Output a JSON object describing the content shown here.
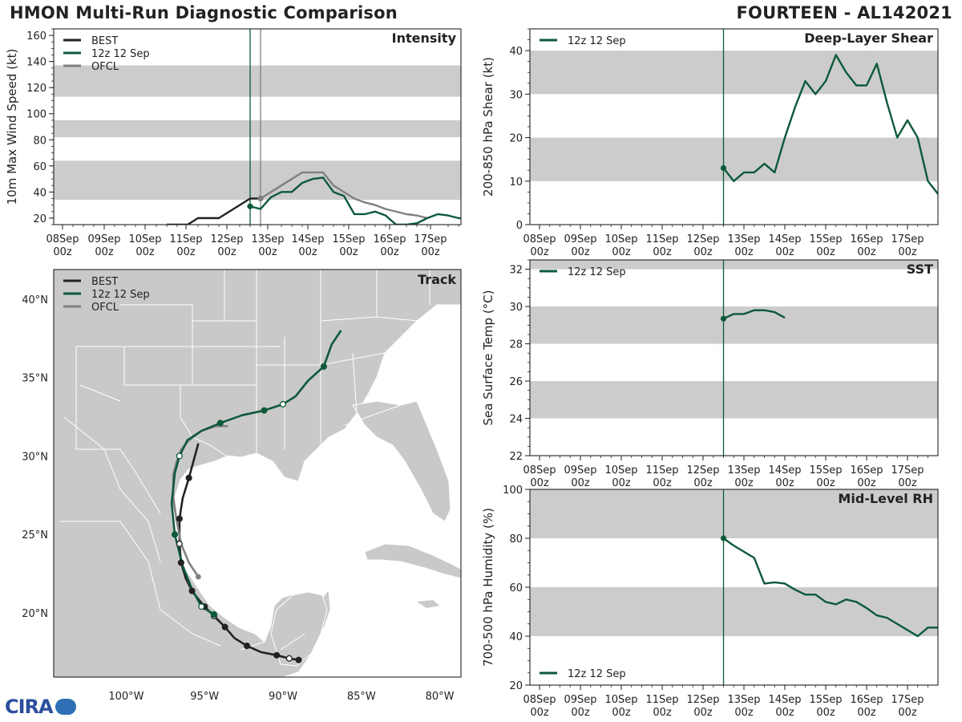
{
  "header": {
    "left_title": "HMON Multi-Run Diagnostic Comparison",
    "right_title": "FOURTEEN - AL142021"
  },
  "logo": {
    "text": "CIRA",
    "icon": "cira-logo-icon"
  },
  "colors": {
    "best": "#222222",
    "run": "#0d5a3a",
    "ofcl": "#808080",
    "band": "#cccccc",
    "land": "#c9c9c9"
  },
  "time_ticks": [
    "08Sep\n00z",
    "09Sep\n00z",
    "10Sep\n00z",
    "11Sep\n00z",
    "12Sep\n00z",
    "13Sep\n00z",
    "14Sep\n00z",
    "15Sep\n00z",
    "16Sep\n00z",
    "17Sep\n00z"
  ],
  "chart_data": [
    {
      "id": "intensity",
      "type": "line",
      "title": "Intensity",
      "ylabel": "10m Max Wind Speed (kt)",
      "xlim": [
        0,
        10.75
      ],
      "ylim": [
        15,
        165
      ],
      "yticks": [
        20,
        40,
        60,
        80,
        100,
        120,
        140,
        160
      ],
      "bands": [
        [
          34,
          64
        ],
        [
          82,
          95
        ],
        [
          113,
          137
        ]
      ],
      "vlines": [
        {
          "x": 4.5,
          "color": "run"
        },
        {
          "x": 4.75,
          "color": "ofcl"
        }
      ],
      "legend": [
        "BEST",
        "12z 12 Sep",
        "OFCL"
      ],
      "series": [
        {
          "name": "BEST",
          "color": "best",
          "x": [
            2.5,
            3,
            3.25,
            3.5,
            3.75,
            4,
            4.25,
            4.5,
            4.75
          ],
          "y": [
            15,
            15,
            20,
            20,
            20,
            25,
            30,
            35,
            35
          ]
        },
        {
          "name": "OFCL",
          "color": "ofcl",
          "marker_first": true,
          "x": [
            4.75,
            5,
            5.25,
            5.5,
            5.75,
            6,
            6.25,
            6.5,
            6.75,
            7,
            7.25,
            7.5,
            7.75,
            8,
            8.25,
            8.5,
            8.75
          ],
          "y": [
            35,
            40,
            45,
            50,
            55,
            55,
            55,
            45,
            40,
            35,
            32,
            30,
            27,
            25,
            23,
            22,
            20
          ]
        },
        {
          "name": "12z 12 Sep",
          "color": "run",
          "marker_first": true,
          "x": [
            4.5,
            4.75,
            5,
            5.25,
            5.5,
            5.75,
            6,
            6.25,
            6.5,
            6.75,
            7,
            7.25,
            7.5,
            7.75,
            8,
            8.25,
            8.5,
            8.75,
            9,
            9.25,
            9.5,
            9.75,
            10,
            10.25,
            10.5,
            10.75
          ],
          "y": [
            29,
            27,
            36,
            40,
            40,
            47,
            50,
            51,
            40,
            37,
            23,
            23,
            25,
            22,
            15,
            15,
            16,
            20,
            23,
            22,
            20,
            19,
            17,
            18,
            17,
            15
          ]
        }
      ]
    },
    {
      "id": "shear",
      "type": "line",
      "title": "Deep-Layer Shear",
      "ylabel": "200-850 hPa Shear (kt)",
      "xlim": [
        0,
        10
      ],
      "ylim": [
        0,
        45
      ],
      "yticks": [
        0,
        10,
        20,
        30,
        40
      ],
      "bands": [
        [
          10,
          20
        ],
        [
          30,
          40
        ]
      ],
      "vlines": [
        {
          "x": 4.5,
          "color": "run"
        }
      ],
      "legend": [
        "12z 12 Sep"
      ],
      "series": [
        {
          "name": "12z 12 Sep",
          "color": "run",
          "marker_first": true,
          "x": [
            4.5,
            4.75,
            5,
            5.25,
            5.5,
            5.75,
            6,
            6.25,
            6.5,
            6.75,
            7,
            7.25,
            7.5,
            7.75,
            8,
            8.25,
            8.5,
            8.75,
            9,
            9.25,
            9.5,
            9.75,
            10
          ],
          "y": [
            13,
            10,
            12,
            12,
            14,
            12,
            20,
            27,
            33,
            30,
            33,
            39,
            35,
            32,
            32,
            37,
            28,
            20,
            24,
            20,
            10,
            7,
            5
          ]
        }
      ]
    },
    {
      "id": "sst",
      "type": "line",
      "title": "SST",
      "ylabel": "Sea Surface Temp (°C)",
      "xlim": [
        0,
        10
      ],
      "ylim": [
        22,
        32.5
      ],
      "yticks": [
        22,
        24,
        26,
        28,
        30,
        32
      ],
      "bands": [
        [
          24,
          26
        ],
        [
          28,
          30
        ],
        [
          32,
          34
        ]
      ],
      "vlines": [
        {
          "x": 4.5,
          "color": "run"
        }
      ],
      "legend": [
        "12z 12 Sep"
      ],
      "series": [
        {
          "name": "12z 12 Sep",
          "color": "run",
          "marker_first": true,
          "x": [
            4.5,
            4.75,
            5,
            5.25,
            5.5,
            5.75,
            6
          ],
          "y": [
            29.35,
            29.6,
            29.6,
            29.8,
            29.8,
            29.7,
            29.4
          ]
        }
      ]
    },
    {
      "id": "rh",
      "type": "line",
      "title": "Mid-Level RH",
      "ylabel": "700-500 hPa Humidity (%)",
      "xlim": [
        0,
        10
      ],
      "ylim": [
        20,
        100
      ],
      "yticks": [
        20,
        40,
        60,
        80,
        100
      ],
      "bands": [
        [
          40,
          60
        ],
        [
          80,
          100
        ]
      ],
      "vlines": [
        {
          "x": 4.5,
          "color": "run"
        }
      ],
      "legend": [
        "12z 12 Sep"
      ],
      "series": [
        {
          "name": "12z 12 Sep",
          "color": "run",
          "marker_first": true,
          "x": [
            4.5,
            4.75,
            5,
            5.25,
            5.5,
            5.75,
            6,
            6.25,
            6.5,
            6.75,
            7,
            7.25,
            7.5,
            7.75,
            8,
            8.25,
            8.5,
            8.75,
            9,
            9.25,
            9.5,
            9.75,
            10
          ],
          "y": [
            80,
            77,
            74.5,
            72,
            61.5,
            62,
            61.5,
            59,
            57,
            57,
            54,
            53,
            55,
            54,
            51.5,
            48.5,
            47.5,
            45,
            42.5,
            40,
            43.5,
            43.5,
            42
          ]
        }
      ]
    },
    {
      "id": "track",
      "type": "scatter",
      "title": "Track",
      "xlim": [
        -105,
        -79
      ],
      "ylim": [
        16,
        42
      ],
      "xticks": [
        [
          -100,
          "100°W"
        ],
        [
          -95,
          "95°W"
        ],
        [
          -90,
          "90°W"
        ],
        [
          -85,
          "85°W"
        ],
        [
          -80,
          "80°W"
        ]
      ],
      "yticks": [
        [
          20,
          "20°N"
        ],
        [
          25,
          "25°N"
        ],
        [
          30,
          "30°N"
        ],
        [
          35,
          "35°N"
        ],
        [
          40,
          "40°N"
        ]
      ],
      "legend": [
        "BEST",
        "12z 12 Sep",
        "OFCL"
      ],
      "series": [
        {
          "name": "BEST",
          "color": "best",
          "lon": [
            -89.0,
            -89.6,
            -90.4,
            -91.4,
            -92.3,
            -93.1,
            -93.7,
            -94.4,
            -95.0,
            -95.5,
            -95.8,
            -96.2,
            -96.5,
            -96.6,
            -96.6,
            -96.4,
            -96.0,
            -95.4
          ],
          "lat": [
            17.0,
            17.1,
            17.3,
            17.5,
            17.9,
            18.4,
            19.1,
            19.8,
            20.4,
            21.0,
            21.4,
            22.2,
            23.2,
            24.4,
            26.0,
            27.3,
            28.6,
            30.8
          ],
          "filled": [
            true,
            false,
            true,
            false,
            true,
            false,
            true,
            false,
            true,
            false,
            true,
            false,
            true,
            false,
            true,
            false,
            true,
            false
          ]
        },
        {
          "name": "OFCL",
          "color": "ofcl",
          "lon": [
            -95.4,
            -96.0,
            -96.5,
            -96.8,
            -97.0,
            -97.0,
            -96.8,
            -96.5,
            -96.0,
            -95.2,
            -94.3,
            -93.5
          ],
          "lat": [
            22.3,
            23.2,
            24.4,
            26.0,
            27.4,
            28.8,
            29.6,
            30.4,
            31.0,
            31.6,
            31.9,
            31.9
          ]
        },
        {
          "name": "12z 12 Sep",
          "color": "run",
          "lon": [
            -94.4,
            -95.2,
            -95.8,
            -96.4,
            -96.9,
            -97.1,
            -96.9,
            -96.6,
            -96.1,
            -95.2,
            -94.0,
            -92.6,
            -91.2,
            -90.0,
            -89.2,
            -88.4,
            -87.4,
            -86.9,
            -86.3
          ],
          "lat": [
            19.9,
            20.4,
            21.5,
            23.0,
            25.0,
            27.0,
            28.9,
            30.0,
            31.0,
            31.6,
            32.1,
            32.6,
            32.9,
            33.3,
            33.8,
            34.8,
            35.7,
            37.1,
            38.0
          ],
          "filled": [
            true,
            false,
            false,
            false,
            true,
            false,
            false,
            false,
            false,
            false,
            true,
            false,
            true,
            false,
            false,
            false,
            true,
            false,
            false
          ]
        }
      ]
    }
  ]
}
